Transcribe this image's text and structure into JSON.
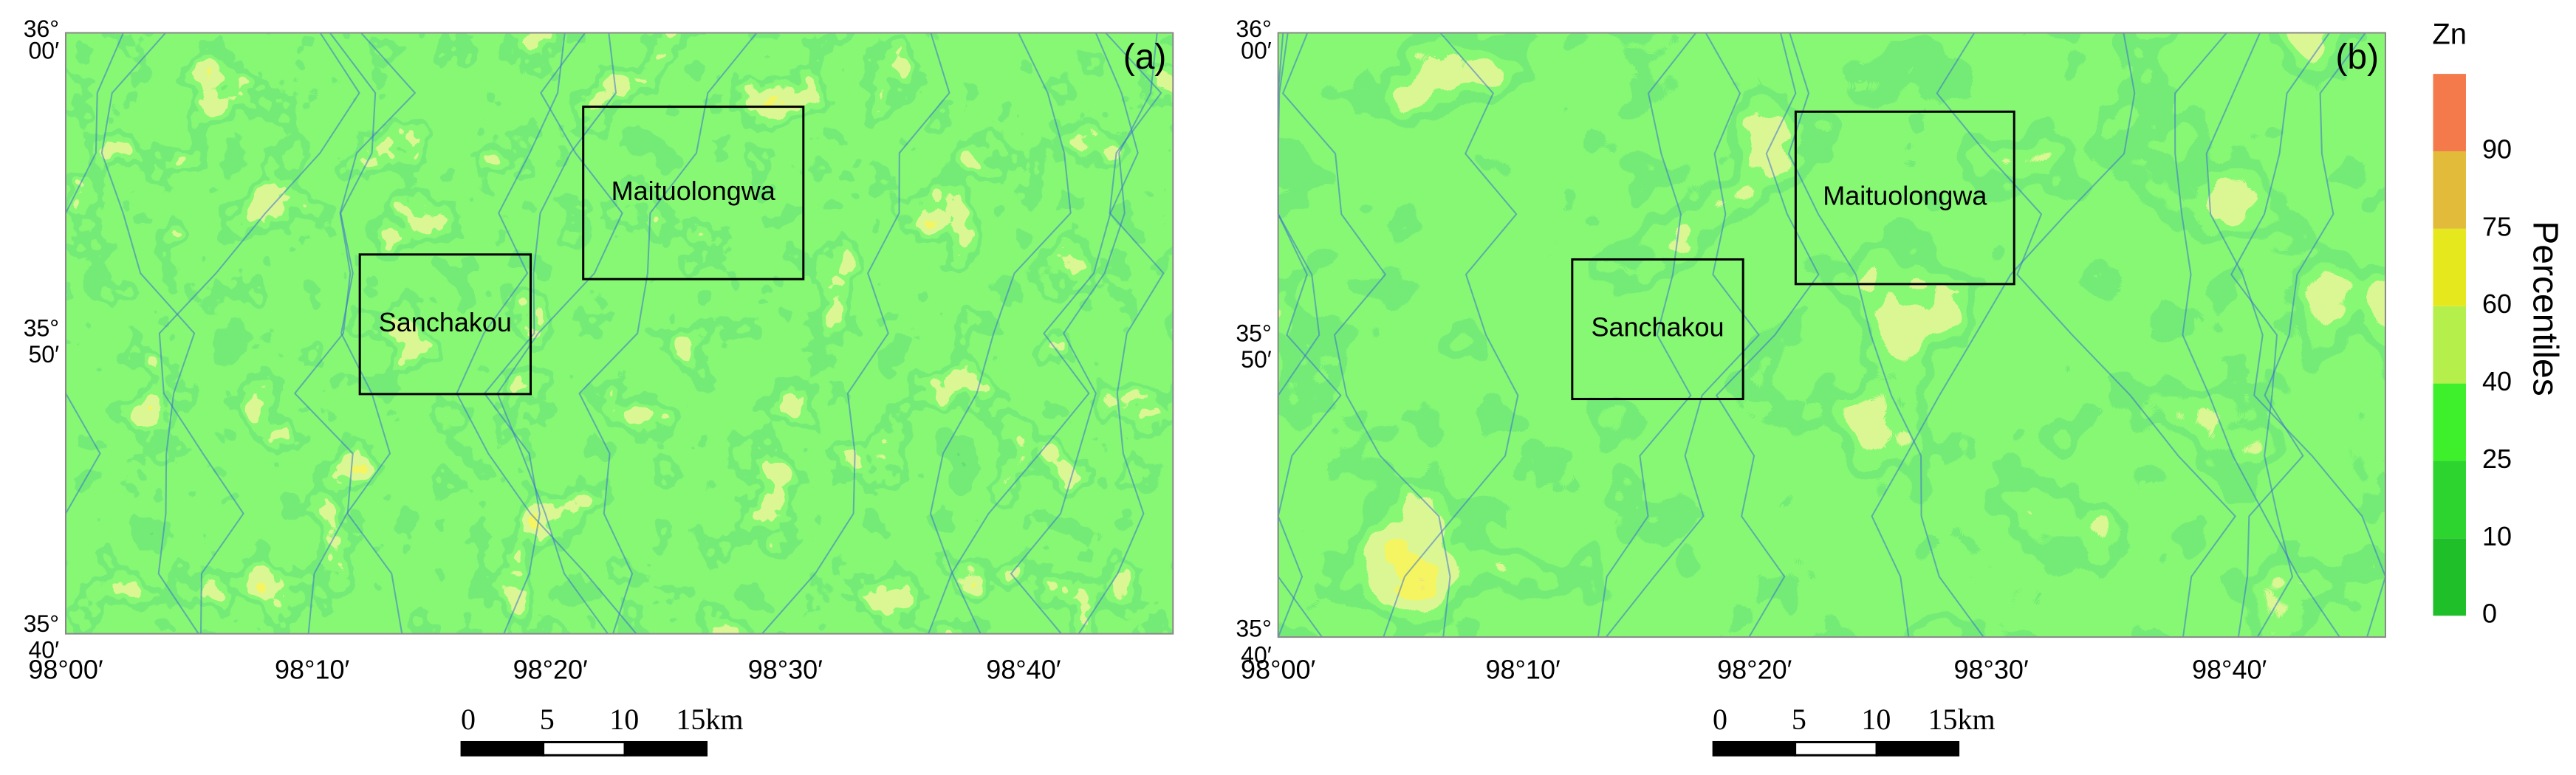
{
  "panels": [
    {
      "label": "(a)",
      "y_labels": [
        {
          "deg": "36°",
          "min": "00′"
        },
        {
          "deg": "35°",
          "min": "50′"
        },
        {
          "deg": "35°",
          "min": "40′"
        }
      ],
      "x_labels": [
        "98°00′",
        "98°10′",
        "98°20′",
        "98°30′",
        "98°40′"
      ],
      "boxes": [
        "Maituolongwa",
        "Sanchakou"
      ],
      "scale_labels": [
        "0",
        "5",
        "10",
        "15km"
      ]
    },
    {
      "label": "(b)",
      "y_labels": [
        {
          "deg": "36°",
          "min": "00′"
        },
        {
          "deg": "35°",
          "min": "50′"
        },
        {
          "deg": "35°",
          "min": "40′"
        }
      ],
      "x_labels": [
        "98°00′",
        "98°10′",
        "98°20′",
        "98°30′",
        "98°40′"
      ],
      "boxes": [
        "Maituolongwa",
        "Sanchakou"
      ],
      "scale_labels": [
        "0",
        "5",
        "10",
        "15km"
      ]
    }
  ],
  "legend": {
    "title": "Zn",
    "axis_label": "Percentiles",
    "ticks": [
      0,
      10,
      25,
      40,
      60,
      75,
      90
    ],
    "colors": [
      "#1fbf2a",
      "#2dd42f",
      "#3ef02c",
      "#b4ef4c",
      "#e6e81e",
      "#e2bb3a",
      "#f47a4c"
    ]
  }
}
